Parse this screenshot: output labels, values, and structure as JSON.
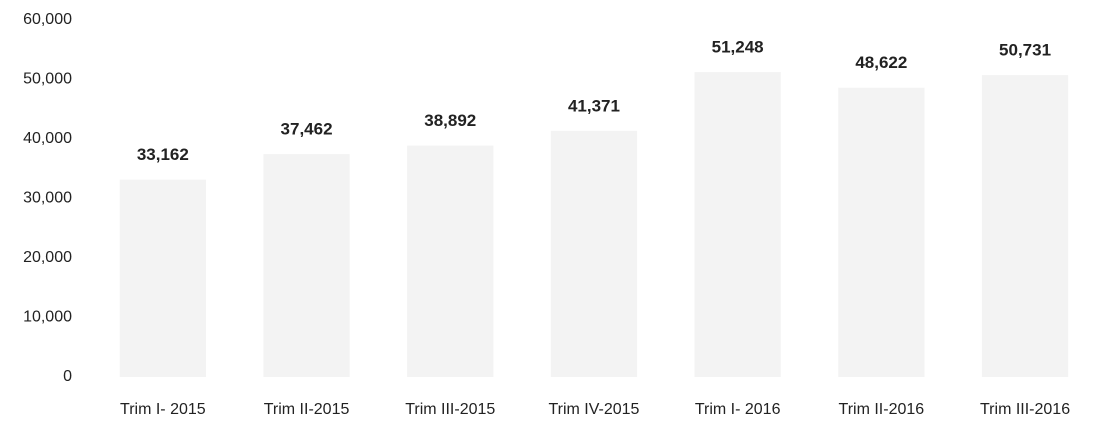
{
  "chart_data": {
    "type": "bar",
    "categories": [
      "Trim I- 2015",
      "Trim II-2015",
      "Trim III-2015",
      "Trim IV-2015",
      "Trim I- 2016",
      "Trim II-2016",
      "Trim III-2016"
    ],
    "values": [
      33162,
      37462,
      38892,
      41371,
      51248,
      48622,
      50731
    ],
    "value_labels": [
      "33,162",
      "37,462",
      "38,892",
      "41,371",
      "51,248",
      "48,622",
      "50,731"
    ],
    "color": "#f3f3f3",
    "ylim": [
      0,
      60000
    ],
    "yticks": [
      0,
      {
        "value": 10000,
        "label": "10,000"
      },
      {
        "value": 20000,
        "label": "20,000"
      },
      {
        "value": 30000,
        "label": "30,000"
      },
      {
        "value": 40000,
        "label": "40,000"
      },
      {
        "value": 50000,
        "label": "50,000"
      },
      {
        "value": 60000,
        "label": "60,000"
      }
    ],
    "grid": false
  }
}
